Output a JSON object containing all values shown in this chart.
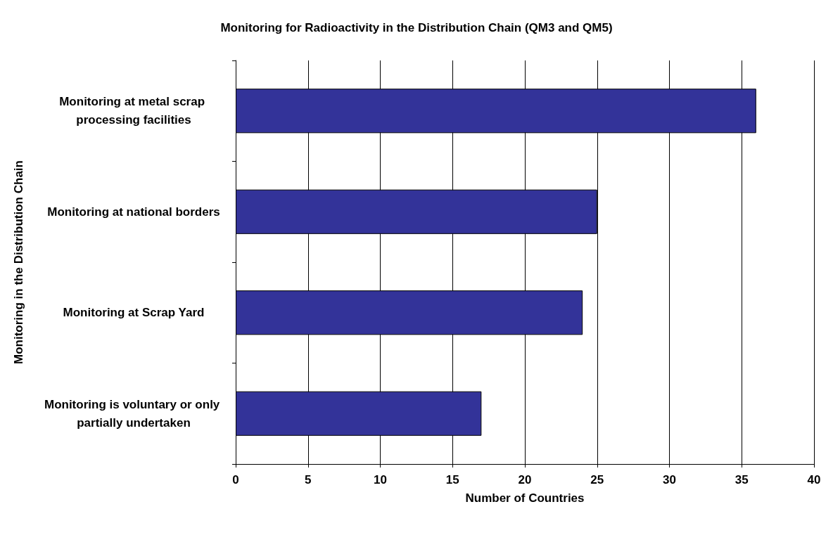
{
  "chart_data": {
    "type": "bar",
    "orientation": "horizontal",
    "title": "Monitoring for Radioactivity in the Distribution Chain (QM3 and QM5)",
    "xlabel": "Number of Countries",
    "ylabel": "Monitoring in the Distribution Chain",
    "categories": [
      "Monitoring at metal scrap processing facilities",
      "Monitoring at national borders",
      "Monitoring at Scrap Yard",
      "Monitoring is voluntary or only partially undertaken"
    ],
    "values": [
      36,
      25,
      24,
      17
    ],
    "color": "#333399",
    "xlim": [
      0,
      40
    ],
    "xticks": [
      0,
      5,
      10,
      15,
      20,
      25,
      30,
      35,
      40
    ],
    "grid": "x"
  }
}
